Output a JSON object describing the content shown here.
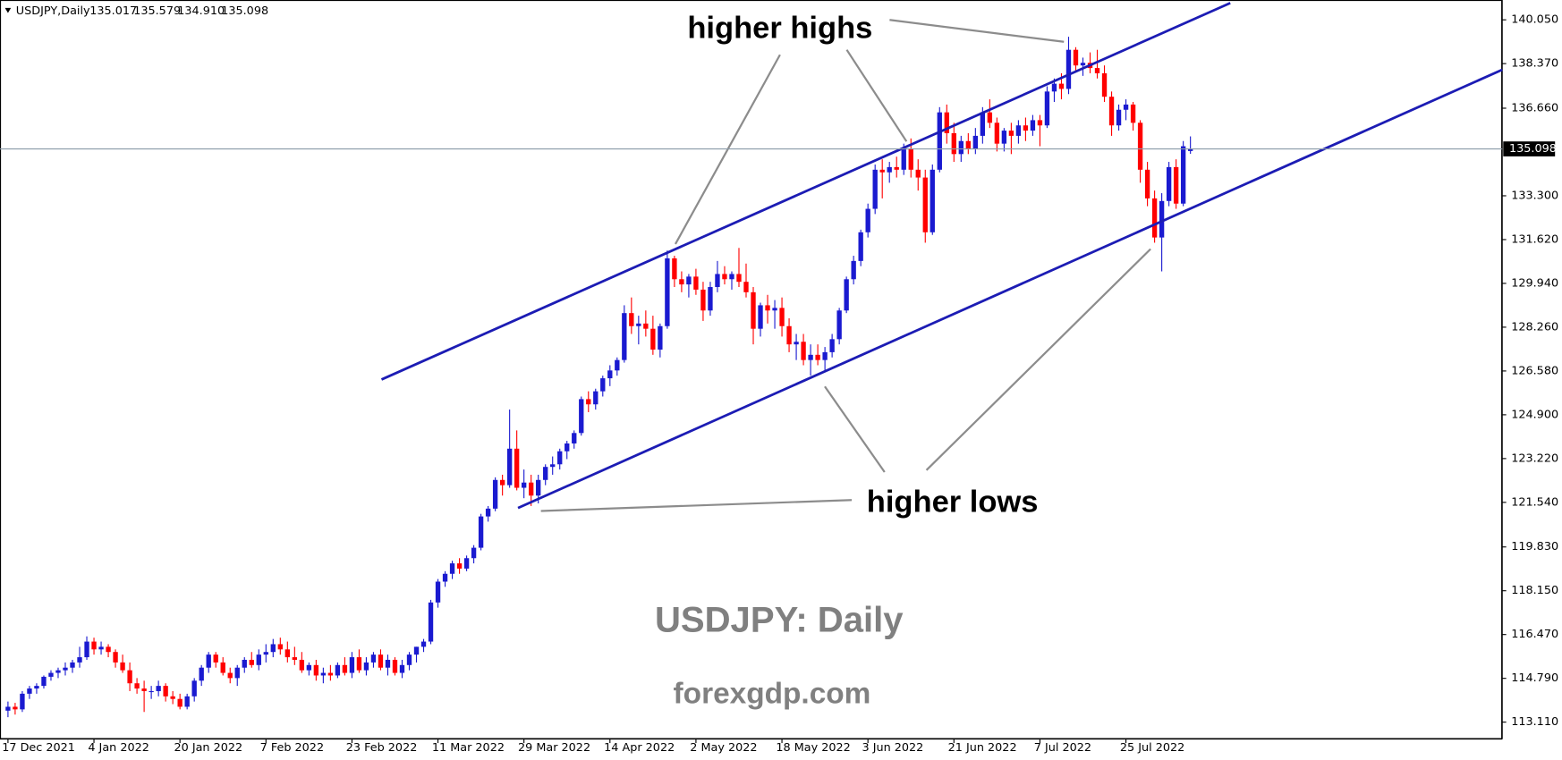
{
  "chart_data": {
    "type": "candlestick",
    "symbol": "USDJPY,Daily",
    "ohlc": [
      "135.017",
      "135.579",
      "134.910",
      "135.098"
    ],
    "annotations": [
      "higher highs",
      "higher lows",
      "USDJPY: Daily",
      "forexgdp.com"
    ],
    "up_color": "#1a1ad0",
    "down_color": "#ff0000",
    "ylim": [
      112.46,
      140.81
    ],
    "yticks": [
      {
        "value": 140.05,
        "label": "140.050"
      },
      {
        "value": 138.37,
        "label": "138.370"
      },
      {
        "value": 136.66,
        "label": "136.660"
      },
      {
        "value": 133.3,
        "label": "133.300"
      },
      {
        "value": 131.62,
        "label": "131.620"
      },
      {
        "value": 129.94,
        "label": "129.940"
      },
      {
        "value": 128.26,
        "label": "128.260"
      },
      {
        "value": 126.58,
        "label": "126.580"
      },
      {
        "value": 124.9,
        "label": "124.900"
      },
      {
        "value": 123.22,
        "label": "123.220"
      },
      {
        "value": 121.54,
        "label": "121.540"
      },
      {
        "value": 119.83,
        "label": "119.830"
      },
      {
        "value": 118.15,
        "label": "118.150"
      },
      {
        "value": 116.47,
        "label": "116.470"
      },
      {
        "value": 114.79,
        "label": "114.790"
      },
      {
        "value": 113.11,
        "label": "113.110"
      }
    ],
    "current_price": {
      "value": 135.098,
      "label": "135.098"
    },
    "categories": [
      "17 Dec 2021",
      null,
      null,
      null,
      null,
      null,
      null,
      null,
      null,
      null,
      null,
      null,
      "4 Jan 2022",
      null,
      null,
      null,
      null,
      null,
      null,
      null,
      null,
      null,
      null,
      null,
      "20 Jan 2022",
      null,
      null,
      null,
      null,
      null,
      null,
      null,
      null,
      null,
      null,
      null,
      "7 Feb 2022",
      null,
      null,
      null,
      null,
      null,
      null,
      null,
      null,
      null,
      null,
      null,
      "23 Feb 2022",
      null,
      null,
      null,
      null,
      null,
      null,
      null,
      null,
      null,
      null,
      null,
      "11 Mar 2022",
      null,
      null,
      null,
      null,
      null,
      null,
      null,
      null,
      null,
      null,
      null,
      "29 Mar 2022",
      null,
      null,
      null,
      null,
      null,
      null,
      null,
      null,
      null,
      null,
      null,
      "14 Apr 2022",
      null,
      null,
      null,
      null,
      null,
      null,
      null,
      null,
      null,
      null,
      null,
      "2 May 2022",
      null,
      null,
      null,
      null,
      null,
      null,
      null,
      null,
      null,
      null,
      null,
      "18 May 2022",
      null,
      null,
      null,
      null,
      null,
      null,
      null,
      null,
      null,
      null,
      null,
      "3 Jun 2022",
      null,
      null,
      null,
      null,
      null,
      null,
      null,
      null,
      null,
      null,
      null,
      "21 Jun 2022",
      null,
      null,
      null,
      null,
      null,
      null,
      null,
      null,
      null,
      null,
      null,
      "7 Jul 2022",
      null,
      null,
      null,
      null,
      null,
      null,
      null,
      null,
      null,
      null,
      null,
      "25 Jul 2022",
      null,
      null,
      null,
      null,
      null,
      null,
      null,
      null,
      null
    ],
    "candles": [
      [
        113.55,
        113.9,
        113.3,
        113.7
      ],
      [
        113.7,
        113.85,
        113.4,
        113.6
      ],
      [
        113.6,
        114.3,
        113.5,
        114.2
      ],
      [
        114.2,
        114.5,
        114.0,
        114.4
      ],
      [
        114.4,
        114.6,
        114.2,
        114.5
      ],
      [
        114.5,
        114.9,
        114.4,
        114.85
      ],
      [
        114.85,
        115.1,
        114.7,
        115.0
      ],
      [
        115.0,
        115.2,
        114.8,
        115.1
      ],
      [
        115.1,
        115.4,
        114.9,
        115.2
      ],
      [
        115.2,
        115.5,
        115.0,
        115.4
      ],
      [
        115.4,
        116.0,
        115.2,
        115.6
      ],
      [
        115.6,
        116.4,
        115.5,
        116.2
      ],
      [
        116.2,
        116.35,
        115.7,
        115.9
      ],
      [
        115.9,
        116.2,
        115.7,
        116.0
      ],
      [
        116.0,
        116.1,
        115.6,
        115.8
      ],
      [
        115.8,
        115.9,
        115.2,
        115.4
      ],
      [
        115.4,
        115.7,
        115.0,
        115.1
      ],
      [
        115.1,
        115.4,
        114.3,
        114.6
      ],
      [
        114.6,
        114.8,
        114.2,
        114.4
      ],
      [
        114.4,
        114.7,
        113.5,
        114.3
      ],
      [
        114.3,
        114.5,
        114.0,
        114.3
      ],
      [
        114.3,
        114.7,
        114.1,
        114.5
      ],
      [
        114.5,
        114.6,
        113.9,
        114.1
      ],
      [
        114.1,
        114.3,
        113.8,
        114.0
      ],
      [
        114.0,
        114.2,
        113.6,
        113.7
      ],
      [
        113.7,
        114.2,
        113.6,
        114.1
      ],
      [
        114.1,
        114.8,
        113.9,
        114.7
      ],
      [
        114.7,
        115.3,
        114.5,
        115.2
      ],
      [
        115.2,
        115.8,
        115.0,
        115.7
      ],
      [
        115.7,
        115.8,
        115.2,
        115.4
      ],
      [
        115.4,
        115.6,
        114.9,
        115.0
      ],
      [
        115.0,
        115.2,
        114.6,
        114.8
      ],
      [
        114.8,
        115.3,
        114.5,
        115.2
      ],
      [
        115.2,
        115.6,
        115.0,
        115.5
      ],
      [
        115.5,
        115.8,
        115.2,
        115.3
      ],
      [
        115.3,
        115.9,
        115.1,
        115.7
      ],
      [
        115.7,
        116.1,
        115.4,
        115.8
      ],
      [
        115.8,
        116.3,
        115.6,
        116.1
      ],
      [
        116.1,
        116.35,
        115.7,
        115.9
      ],
      [
        115.9,
        116.2,
        115.4,
        115.6
      ],
      [
        115.6,
        116.0,
        115.3,
        115.5
      ],
      [
        115.5,
        115.8,
        115.0,
        115.1
      ],
      [
        115.1,
        115.4,
        114.9,
        115.3
      ],
      [
        115.3,
        115.5,
        114.7,
        114.9
      ],
      [
        114.9,
        115.2,
        114.6,
        115.0
      ],
      [
        115.0,
        115.3,
        114.7,
        114.9
      ],
      [
        114.9,
        115.4,
        114.8,
        115.3
      ],
      [
        115.3,
        115.6,
        114.9,
        115.0
      ],
      [
        115.0,
        115.8,
        114.8,
        115.6
      ],
      [
        115.6,
        115.9,
        115.0,
        115.1
      ],
      [
        115.1,
        115.6,
        114.9,
        115.4
      ],
      [
        115.4,
        115.8,
        115.2,
        115.7
      ],
      [
        115.7,
        115.9,
        115.1,
        115.2
      ],
      [
        115.2,
        115.7,
        114.9,
        115.5
      ],
      [
        115.5,
        115.6,
        114.9,
        115.0
      ],
      [
        115.0,
        115.5,
        114.8,
        115.3
      ],
      [
        115.3,
        115.8,
        115.1,
        115.7
      ],
      [
        115.7,
        116.0,
        115.4,
        116.0
      ],
      [
        116.0,
        116.3,
        115.8,
        116.2
      ],
      [
        116.2,
        117.8,
        116.1,
        117.7
      ],
      [
        117.7,
        118.6,
        117.5,
        118.5
      ],
      [
        118.5,
        118.9,
        118.3,
        118.8
      ],
      [
        118.8,
        119.3,
        118.6,
        119.2
      ],
      [
        119.2,
        119.4,
        118.8,
        119.0
      ],
      [
        119.0,
        119.5,
        118.9,
        119.4
      ],
      [
        119.4,
        119.9,
        119.2,
        119.8
      ],
      [
        119.8,
        121.1,
        119.7,
        121.0
      ],
      [
        121.0,
        121.4,
        120.8,
        121.3
      ],
      [
        121.3,
        122.5,
        121.2,
        122.4
      ],
      [
        122.4,
        122.6,
        121.8,
        122.2
      ],
      [
        122.2,
        125.1,
        122.1,
        123.6
      ],
      [
        123.6,
        124.3,
        122.0,
        122.1
      ],
      [
        122.1,
        122.8,
        121.7,
        122.3
      ],
      [
        122.3,
        122.6,
        121.4,
        121.8
      ],
      [
        121.8,
        122.6,
        121.5,
        122.4
      ],
      [
        122.4,
        123.0,
        122.2,
        122.9
      ],
      [
        122.9,
        123.3,
        122.6,
        123.0
      ],
      [
        123.0,
        123.6,
        122.8,
        123.5
      ],
      [
        123.5,
        123.9,
        123.2,
        123.8
      ],
      [
        123.8,
        124.3,
        123.6,
        124.2
      ],
      [
        124.2,
        125.6,
        124.1,
        125.5
      ],
      [
        125.5,
        125.8,
        125.0,
        125.3
      ],
      [
        125.3,
        125.9,
        125.1,
        125.8
      ],
      [
        125.8,
        126.4,
        125.6,
        126.3
      ],
      [
        126.3,
        126.8,
        126.0,
        126.6
      ],
      [
        126.6,
        127.1,
        126.4,
        127.0
      ],
      [
        127.0,
        129.1,
        126.9,
        128.8
      ],
      [
        128.8,
        129.4,
        128.0,
        128.3
      ],
      [
        128.3,
        128.7,
        127.6,
        128.4
      ],
      [
        128.4,
        128.9,
        127.9,
        128.2
      ],
      [
        128.2,
        128.7,
        127.2,
        127.4
      ],
      [
        127.4,
        128.4,
        127.1,
        128.3
      ],
      [
        128.3,
        131.2,
        128.2,
        130.9
      ],
      [
        130.9,
        131.0,
        129.8,
        130.1
      ],
      [
        130.1,
        130.4,
        129.6,
        129.9
      ],
      [
        129.9,
        130.3,
        129.4,
        130.2
      ],
      [
        130.2,
        130.5,
        129.5,
        129.7
      ],
      [
        129.7,
        130.0,
        128.5,
        128.9
      ],
      [
        128.9,
        130.0,
        128.7,
        129.8
      ],
      [
        129.8,
        130.8,
        129.6,
        130.3
      ],
      [
        130.3,
        130.6,
        129.9,
        130.1
      ],
      [
        130.1,
        130.4,
        129.7,
        130.3
      ],
      [
        130.3,
        131.3,
        129.8,
        130.0
      ],
      [
        130.0,
        130.7,
        129.4,
        129.6
      ],
      [
        129.6,
        129.8,
        127.6,
        128.2
      ],
      [
        128.2,
        129.2,
        127.9,
        129.1
      ],
      [
        129.1,
        129.5,
        128.4,
        128.9
      ],
      [
        128.9,
        129.3,
        128.2,
        129.0
      ],
      [
        129.0,
        129.4,
        127.9,
        128.3
      ],
      [
        128.3,
        128.6,
        127.3,
        127.6
      ],
      [
        127.6,
        128.0,
        127.0,
        127.7
      ],
      [
        127.7,
        128.0,
        126.8,
        127.0
      ],
      [
        127.0,
        127.6,
        126.4,
        127.2
      ],
      [
        127.2,
        127.6,
        126.8,
        127.0
      ],
      [
        127.0,
        127.5,
        126.6,
        127.3
      ],
      [
        127.3,
        128.0,
        127.1,
        127.8
      ],
      [
        127.8,
        129.0,
        127.6,
        128.9
      ],
      [
        128.9,
        130.2,
        128.8,
        130.1
      ],
      [
        130.1,
        131.0,
        129.9,
        130.8
      ],
      [
        130.8,
        132.0,
        130.6,
        131.9
      ],
      [
        131.9,
        133.0,
        131.7,
        132.8
      ],
      [
        132.8,
        134.5,
        132.6,
        134.3
      ],
      [
        134.3,
        134.7,
        133.2,
        134.2
      ],
      [
        134.2,
        134.6,
        133.8,
        134.4
      ],
      [
        134.4,
        134.8,
        134.0,
        134.3
      ],
      [
        134.3,
        135.3,
        134.1,
        135.1
      ],
      [
        135.1,
        135.5,
        134.0,
        134.3
      ],
      [
        134.3,
        134.7,
        133.5,
        134.0
      ],
      [
        134.0,
        134.3,
        131.5,
        131.9
      ],
      [
        131.9,
        134.5,
        131.8,
        134.3
      ],
      [
        134.3,
        136.7,
        134.2,
        136.5
      ],
      [
        136.5,
        136.8,
        135.3,
        135.7
      ],
      [
        135.7,
        136.1,
        134.6,
        134.9
      ],
      [
        134.9,
        135.6,
        134.6,
        135.4
      ],
      [
        135.4,
        135.7,
        134.9,
        135.1
      ],
      [
        135.1,
        135.9,
        134.9,
        135.6
      ],
      [
        135.6,
        136.7,
        135.3,
        136.5
      ],
      [
        136.5,
        137.0,
        135.9,
        136.1
      ],
      [
        136.1,
        136.3,
        135.0,
        135.3
      ],
      [
        135.3,
        135.9,
        135.0,
        135.8
      ],
      [
        135.8,
        136.1,
        134.9,
        135.6
      ],
      [
        135.6,
        136.2,
        135.3,
        136.0
      ],
      [
        136.0,
        136.3,
        135.4,
        135.8
      ],
      [
        135.8,
        136.4,
        135.6,
        136.2
      ],
      [
        136.2,
        136.4,
        135.2,
        136.0
      ],
      [
        136.0,
        137.5,
        135.9,
        137.3
      ],
      [
        137.3,
        137.8,
        136.9,
        137.6
      ],
      [
        137.6,
        138.0,
        137.0,
        137.4
      ],
      [
        137.4,
        139.4,
        137.2,
        138.9
      ],
      [
        138.9,
        139.0,
        138.1,
        138.3
      ],
      [
        138.3,
        138.6,
        137.9,
        138.4
      ],
      [
        138.4,
        138.8,
        138.0,
        138.2
      ],
      [
        138.2,
        138.9,
        137.8,
        138.0
      ],
      [
        138.0,
        138.3,
        136.9,
        137.1
      ],
      [
        137.1,
        137.3,
        135.6,
        136.0
      ],
      [
        136.0,
        136.8,
        135.8,
        136.6
      ],
      [
        136.6,
        137.0,
        136.2,
        136.8
      ],
      [
        136.8,
        136.9,
        135.8,
        136.1
      ],
      [
        136.1,
        136.2,
        133.8,
        134.3
      ],
      [
        134.3,
        134.6,
        132.9,
        133.2
      ],
      [
        133.2,
        133.5,
        131.5,
        131.7
      ],
      [
        131.7,
        133.4,
        130.4,
        133.1
      ],
      [
        133.1,
        134.6,
        132.9,
        134.4
      ],
      [
        134.4,
        134.7,
        132.8,
        133.0
      ],
      [
        133.0,
        135.4,
        132.9,
        135.2
      ],
      [
        135.017,
        135.579,
        134.91,
        135.098
      ]
    ]
  }
}
